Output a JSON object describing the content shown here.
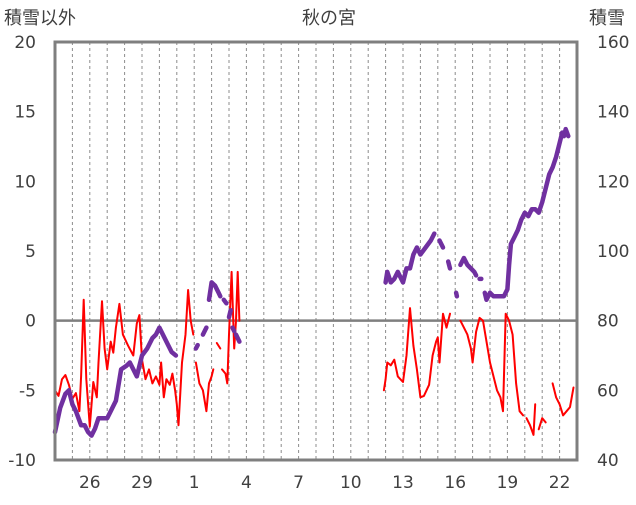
{
  "chart_data": {
    "type": "line",
    "title": "秋の宮",
    "left_axis_label": "積雪以外",
    "right_axis_label": "積雪",
    "left_ylim": [
      -10,
      20
    ],
    "left_ticks": [
      "20",
      "15",
      "10",
      "5",
      "0",
      "-5",
      "-10"
    ],
    "right_ylim": [
      40,
      160
    ],
    "right_ticks": [
      "160",
      "140",
      "120",
      "100",
      "80",
      "60",
      "40"
    ],
    "xlim": [
      24,
      54
    ],
    "x_ticks": [
      {
        "x": 26,
        "label": "26"
      },
      {
        "x": 29,
        "label": "29"
      },
      {
        "x": 32,
        "label": "1"
      },
      {
        "x": 35,
        "label": "4"
      },
      {
        "x": 38,
        "label": "7"
      },
      {
        "x": 41,
        "label": "10"
      },
      {
        "x": 44,
        "label": "13"
      },
      {
        "x": 47,
        "label": "16"
      },
      {
        "x": 50,
        "label": "19"
      },
      {
        "x": 53,
        "label": "22"
      }
    ],
    "grid": "dashed vertical lines at each day",
    "series": [
      {
        "color": "#ff0000",
        "axis": "left",
        "segments": [
          [
            [
              24.0,
              -5.0
            ],
            [
              24.2,
              -5.4
            ],
            [
              24.4,
              -4.2
            ],
            [
              24.6,
              -3.9
            ],
            [
              24.8,
              -4.6
            ],
            [
              25.0,
              -5.6
            ],
            [
              25.2,
              -5.2
            ],
            [
              25.4,
              -6.5
            ],
            [
              25.5,
              -4.0
            ],
            [
              25.65,
              1.5
            ],
            [
              25.8,
              -4.2
            ],
            [
              26.0,
              -7.6
            ],
            [
              26.2,
              -4.4
            ],
            [
              26.4,
              -5.5
            ],
            [
              26.5,
              -3.0
            ],
            [
              26.7,
              1.4
            ],
            [
              26.85,
              -2.0
            ],
            [
              27.0,
              -3.5
            ],
            [
              27.2,
              -1.5
            ],
            [
              27.35,
              -2.3
            ],
            [
              27.5,
              -0.5
            ],
            [
              27.7,
              1.2
            ],
            [
              27.9,
              -1.0
            ],
            [
              28.2,
              -1.8
            ],
            [
              28.5,
              -2.5
            ],
            [
              28.7,
              -0.2
            ],
            [
              28.85,
              0.4
            ],
            [
              29.0,
              -2.8
            ],
            [
              29.2,
              -4.2
            ],
            [
              29.4,
              -3.5
            ],
            [
              29.6,
              -4.5
            ],
            [
              29.8,
              -4.0
            ],
            [
              30.0,
              -4.6
            ],
            [
              30.1,
              -3.0
            ],
            [
              30.25,
              -5.5
            ],
            [
              30.4,
              -4.2
            ],
            [
              30.6,
              -4.6
            ],
            [
              30.75,
              -3.8
            ],
            [
              30.9,
              -5.0
            ],
            [
              31.0,
              -6.0
            ],
            [
              31.1,
              -7.5
            ],
            [
              31.3,
              -3.0
            ],
            [
              31.5,
              -1.0
            ],
            [
              31.65,
              2.2
            ],
            [
              31.8,
              0.0
            ],
            [
              31.95,
              -1.0
            ]
          ],
          [
            [
              32.1,
              -3.0
            ],
            [
              32.3,
              -4.5
            ],
            [
              32.5,
              -5.0
            ],
            [
              32.7,
              -6.5
            ],
            [
              32.85,
              -4.5
            ],
            [
              33.0,
              -4.0
            ],
            [
              33.1,
              -3.5
            ]
          ],
          [
            [
              33.3,
              -1.6
            ],
            [
              33.5,
              -2.0
            ]
          ],
          [
            [
              33.6,
              -3.5
            ],
            [
              33.8,
              -3.8
            ],
            [
              33.9,
              -4.5
            ],
            [
              34.0,
              -1.0
            ],
            [
              34.15,
              3.5
            ],
            [
              34.3,
              -2.0
            ],
            [
              34.4,
              0.0
            ],
            [
              34.5,
              3.5
            ],
            [
              34.6,
              0.0
            ]
          ],
          [
            [
              42.9,
              -5.0
            ],
            [
              43.0,
              -4.2
            ],
            [
              43.1,
              -3.0
            ],
            [
              43.3,
              -3.2
            ],
            [
              43.5,
              -2.8
            ],
            [
              43.7,
              -4.0
            ],
            [
              44.0,
              -4.4
            ],
            [
              44.2,
              -2.5
            ],
            [
              44.4,
              0.9
            ],
            [
              44.6,
              -1.8
            ],
            [
              44.8,
              -3.5
            ],
            [
              45.0,
              -5.5
            ],
            [
              45.2,
              -5.4
            ],
            [
              45.5,
              -4.6
            ],
            [
              45.7,
              -2.5
            ],
            [
              45.9,
              -1.5
            ],
            [
              46.0,
              -1.2
            ],
            [
              46.1,
              -3.0
            ],
            [
              46.3,
              0.5
            ],
            [
              46.5,
              -0.5
            ],
            [
              46.7,
              0.5
            ]
          ],
          [
            [
              47.3,
              0.0
            ],
            [
              47.5,
              -0.5
            ],
            [
              47.7,
              -1.0
            ],
            [
              47.9,
              -2.0
            ],
            [
              48.0,
              -3.0
            ],
            [
              48.2,
              -0.8
            ],
            [
              48.4,
              0.2
            ],
            [
              48.6,
              0.0
            ],
            [
              48.8,
              -1.5
            ],
            [
              49.0,
              -3.0
            ],
            [
              49.2,
              -4.0
            ],
            [
              49.4,
              -5.0
            ],
            [
              49.6,
              -5.5
            ],
            [
              49.75,
              -6.5
            ],
            [
              49.9,
              0.5
            ],
            [
              50.1,
              0.0
            ],
            [
              50.3,
              -1.0
            ],
            [
              50.5,
              -4.5
            ],
            [
              50.7,
              -6.5
            ],
            [
              50.9,
              -6.8
            ]
          ],
          [
            [
              51.1,
              -7.0
            ],
            [
              51.3,
              -7.5
            ],
            [
              51.5,
              -8.2
            ],
            [
              51.6,
              -6.0
            ]
          ],
          [
            [
              51.8,
              -7.8
            ],
            [
              52.0,
              -7.0
            ],
            [
              52.2,
              -7.3
            ]
          ],
          [
            [
              52.6,
              -4.5
            ],
            [
              52.8,
              -5.5
            ],
            [
              53.0,
              -6.0
            ],
            [
              53.2,
              -6.8
            ],
            [
              53.4,
              -6.5
            ],
            [
              53.6,
              -6.2
            ],
            [
              53.8,
              -4.8
            ]
          ]
        ]
      },
      {
        "color": "#7030a0",
        "axis": "right",
        "segments": [
          [
            [
              24.0,
              48
            ],
            [
              24.3,
              55
            ],
            [
              24.6,
              59
            ],
            [
              24.8,
              60
            ],
            [
              25.0,
              56
            ],
            [
              25.2,
              54
            ],
            [
              25.5,
              50
            ],
            [
              25.7,
              50
            ],
            [
              25.9,
              48
            ],
            [
              26.1,
              47
            ],
            [
              26.3,
              49
            ],
            [
              26.5,
              52
            ],
            [
              26.8,
              52
            ],
            [
              27.0,
              52
            ],
            [
              27.2,
              54
            ],
            [
              27.5,
              57
            ],
            [
              27.8,
              66
            ],
            [
              28.1,
              67
            ],
            [
              28.3,
              68
            ],
            [
              28.5,
              66
            ],
            [
              28.7,
              64
            ],
            [
              28.85,
              67
            ],
            [
              29.0,
              70
            ],
            [
              29.3,
              72
            ],
            [
              29.6,
              75
            ],
            [
              29.8,
              76
            ],
            [
              30.0,
              78
            ],
            [
              30.2,
              76
            ],
            [
              30.4,
              74
            ],
            [
              30.7,
              71
            ],
            [
              30.95,
              70
            ]
          ],
          [
            [
              32.1,
              72
            ],
            [
              32.2,
              73
            ]
          ],
          [
            [
              32.5,
              76
            ],
            [
              32.7,
              78
            ]
          ],
          [
            [
              32.85,
              86
            ],
            [
              33.0,
              91
            ],
            [
              33.2,
              90
            ],
            [
              33.4,
              88
            ],
            [
              33.5,
              87
            ]
          ],
          [
            [
              33.7,
              86
            ],
            [
              33.85,
              85
            ]
          ],
          [
            [
              34.0,
              81
            ],
            [
              34.1,
              83
            ]
          ],
          [
            [
              34.2,
              78
            ],
            [
              34.3,
              77
            ]
          ],
          [
            [
              34.4,
              76
            ],
            [
              34.6,
              74
            ]
          ],
          [
            [
              43.0,
              91
            ],
            [
              43.1,
              94
            ],
            [
              43.3,
              91
            ],
            [
              43.5,
              92
            ],
            [
              43.7,
              94
            ],
            [
              44.0,
              91
            ],
            [
              44.2,
              95
            ],
            [
              44.4,
              95
            ],
            [
              44.6,
              99
            ],
            [
              44.8,
              101
            ],
            [
              45.0,
              99
            ],
            [
              45.3,
              101
            ],
            [
              45.6,
              103
            ],
            [
              45.8,
              105
            ]
          ],
          [
            [
              46.1,
              103
            ],
            [
              46.3,
              101
            ]
          ],
          [
            [
              46.6,
              97
            ],
            [
              46.7,
              95
            ]
          ],
          [
            [
              47.05,
              88
            ],
            [
              47.1,
              87
            ]
          ],
          [
            [
              47.3,
              96
            ],
            [
              47.5,
              98
            ],
            [
              47.7,
              96
            ],
            [
              47.9,
              95
            ],
            [
              48.1,
              94
            ],
            [
              48.2,
              93
            ]
          ],
          [
            [
              48.4,
              92
            ],
            [
              48.5,
              92
            ]
          ],
          [
            [
              48.7,
              88
            ],
            [
              48.8,
              86
            ],
            [
              49.0,
              88
            ],
            [
              49.2,
              87
            ],
            [
              49.4,
              87
            ],
            [
              49.6,
              87
            ],
            [
              49.8,
              87
            ],
            [
              50.0,
              89
            ],
            [
              50.1,
              96
            ],
            [
              50.2,
              102
            ],
            [
              50.4,
              104
            ],
            [
              50.6,
              106
            ],
            [
              50.8,
              109
            ],
            [
              51.0,
              111
            ],
            [
              51.2,
              110
            ],
            [
              51.4,
              112
            ],
            [
              51.6,
              112
            ],
            [
              51.8,
              111
            ],
            [
              52.0,
              114
            ],
            [
              52.2,
              118
            ],
            [
              52.4,
              122
            ],
            [
              52.6,
              124
            ],
            [
              52.8,
              127
            ],
            [
              53.0,
              131
            ],
            [
              53.15,
              134
            ],
            [
              53.25,
              133
            ],
            [
              53.35,
              135
            ],
            [
              53.5,
              133
            ]
          ]
        ]
      }
    ]
  }
}
